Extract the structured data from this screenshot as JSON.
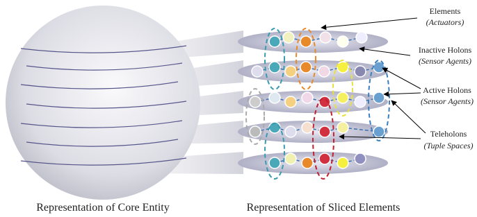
{
  "labels": [
    {
      "title": "Elements",
      "subtitle": "(Actuators)"
    },
    {
      "title": "Inactive Holons",
      "subtitle": "(Sensor Agents)"
    },
    {
      "title": "Active Holons",
      "subtitle": "(Sensor Agents)"
    },
    {
      "title": "Teleholons",
      "subtitle": "(Tuple Spaces)"
    }
  ],
  "captions": {
    "core": "Representation of Core Entity",
    "sliced": "Representation of Sliced Elements"
  }
}
